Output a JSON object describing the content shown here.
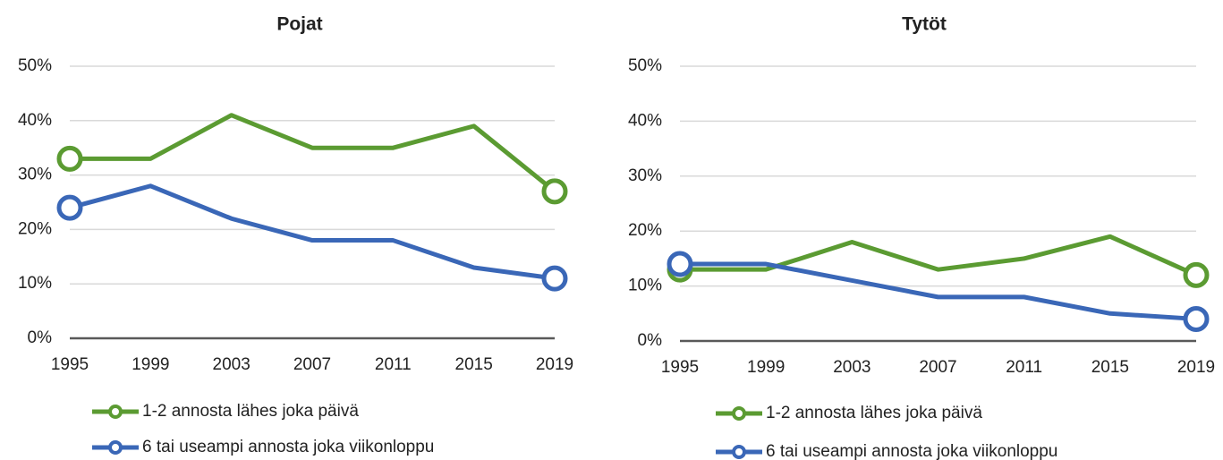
{
  "chart_data": [
    {
      "type": "line",
      "title": "Pojat",
      "categories": [
        "1995",
        "1999",
        "2003",
        "2007",
        "2011",
        "2015",
        "2019"
      ],
      "series": [
        {
          "name": "1-2 annosta lähes joka päivä",
          "color": "#5b9b32",
          "values": [
            33,
            33,
            41,
            35,
            35,
            39,
            27
          ]
        },
        {
          "name": "6 tai useampi annosta joka viikonloppu",
          "color": "#3a67b7",
          "values": [
            24,
            28,
            22,
            18,
            18,
            13,
            11
          ]
        }
      ],
      "ylim": [
        0,
        50
      ],
      "yticks": [
        {
          "value": 0,
          "label": "0%"
        },
        {
          "value": 10,
          "label": "10%"
        },
        {
          "value": 20,
          "label": "20%"
        },
        {
          "value": 30,
          "label": "30%"
        },
        {
          "value": 40,
          "label": "40%"
        },
        {
          "value": 50,
          "label": "50%"
        }
      ],
      "grid": true,
      "legend": "bottom"
    },
    {
      "type": "line",
      "title": "Tytöt",
      "categories": [
        "1995",
        "1999",
        "2003",
        "2007",
        "2011",
        "2015",
        "2019"
      ],
      "series": [
        {
          "name": "1-2 annosta lähes joka päivä",
          "color": "#5b9b32",
          "values": [
            13,
            13,
            18,
            13,
            15,
            19,
            12
          ]
        },
        {
          "name": "6 tai useampi annosta joka viikonloppu",
          "color": "#3a67b7",
          "values": [
            14,
            14,
            11,
            8,
            8,
            5,
            4
          ]
        }
      ],
      "ylim": [
        0,
        50
      ],
      "yticks": [
        {
          "value": 0,
          "label": "0%"
        },
        {
          "value": 10,
          "label": "10%"
        },
        {
          "value": 20,
          "label": "20%"
        },
        {
          "value": 30,
          "label": "30%"
        },
        {
          "value": 40,
          "label": "40%"
        },
        {
          "value": 50,
          "label": "50%"
        }
      ],
      "grid": true,
      "legend": "bottom"
    }
  ]
}
